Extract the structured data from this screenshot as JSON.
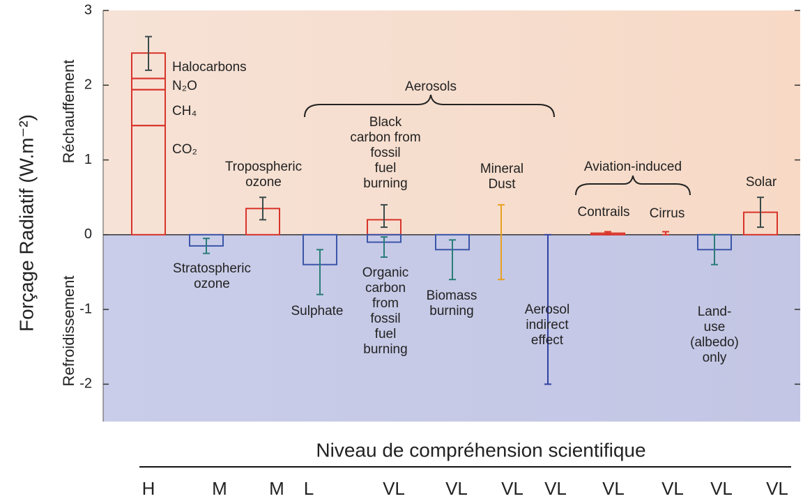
{
  "chart_data": {
    "type": "bar",
    "y_label": "Forçage Radiatif (W.m⁻²)",
    "region_labels": {
      "positive": "Réchauffement",
      "negative": "Refroidissement"
    },
    "ylim": [
      -2.5,
      3
    ],
    "yticks": [
      -2,
      -1,
      0,
      1,
      2,
      3
    ],
    "bar_colors": {
      "positive": "#d8342a",
      "negative": "#3b55a8"
    },
    "groups": [
      {
        "name": "Aerosols"
      },
      {
        "name": "Aviation-induced"
      }
    ],
    "items": [
      {
        "segments": [
          {
            "name": "CO₂",
            "value": 1.46
          },
          {
            "name": "CH₄",
            "value": 0.48
          },
          {
            "name": "N₂O",
            "value": 0.15
          },
          {
            "name": "Halocarbons",
            "value": 0.34
          }
        ],
        "range": [
          2.2,
          2.65
        ],
        "error_color": "#3a4a4a"
      },
      {
        "labels": [
          "Stratospheric",
          "ozone"
        ],
        "value": -0.15,
        "range": [
          -0.25,
          -0.05
        ],
        "error_color": "#2a7c78"
      },
      {
        "labels": [
          "Tropospheric",
          "ozone"
        ],
        "value": 0.35,
        "range": [
          0.2,
          0.5
        ],
        "error_color": "#3a4a4a"
      },
      {
        "labels": [
          "Sulphate"
        ],
        "value": -0.4,
        "range": [
          -0.8,
          -0.2
        ],
        "error_color": "#2a7c78"
      },
      {
        "labels": [
          "Black",
          "carbon from",
          "fossil",
          "fuel",
          "burning"
        ],
        "value": 0.2,
        "range": [
          0.1,
          0.4
        ],
        "error_color": "#3a4a4a"
      },
      {
        "labels": [
          "Organic",
          "carbon",
          "from",
          "fossil",
          "fuel",
          "burning"
        ],
        "value": -0.1,
        "range": [
          -0.3,
          -0.03
        ],
        "error_color": "#2a7c78"
      },
      {
        "labels": [
          "Biomass",
          "burning"
        ],
        "value": -0.2,
        "range": [
          -0.6,
          -0.07
        ],
        "error_color": "#2a7c78"
      },
      {
        "labels": [
          "Mineral",
          "Dust"
        ],
        "range": [
          -0.6,
          0.4
        ],
        "error_color": "#e8a020"
      },
      {
        "labels": [
          "Aerosol",
          "indirect",
          "effect"
        ],
        "range": [
          -2,
          0
        ],
        "error_color": "#3040a0"
      },
      {
        "labels": [
          "Contrails"
        ],
        "value": 0.02,
        "range": [
          0,
          0.04
        ],
        "error_color": "#d8342a"
      },
      {
        "labels": [
          "Cirrus"
        ],
        "range": [
          0,
          0.04
        ],
        "error_color": "#d8342a"
      },
      {
        "labels": [
          "Land-",
          "use",
          "(albedo)",
          "only"
        ],
        "value": -0.2,
        "range": [
          -0.4,
          0
        ],
        "error_color": "#2a7c78"
      },
      {
        "labels": [
          "Solar"
        ],
        "value": 0.3,
        "range": [
          0.1,
          0.5
        ],
        "error_color": "#3a4a4a"
      }
    ],
    "x_label": "Niveau de compréhension scientifique",
    "levels": [
      "H",
      "M",
      "M",
      "L",
      "VL",
      "VL",
      "VL",
      "VL",
      "VL",
      "VL",
      "VL",
      "VL"
    ]
  }
}
